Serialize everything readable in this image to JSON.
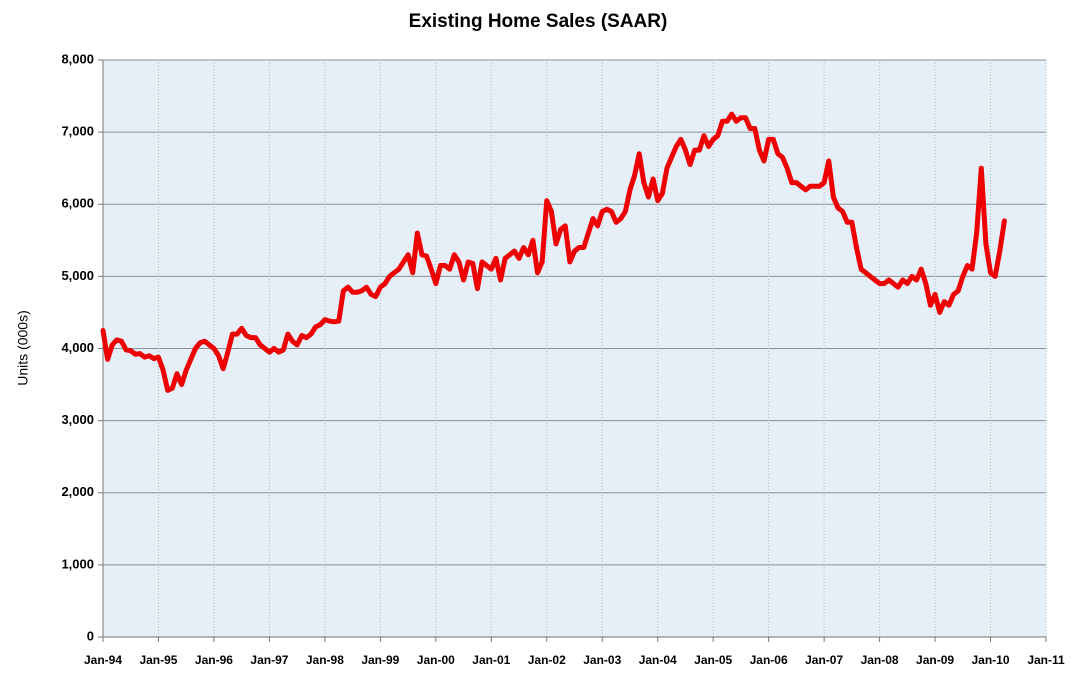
{
  "chart_data": {
    "type": "line",
    "title": "Existing Home Sales (SAAR)",
    "y_label": "Units (000s)",
    "x": [
      "1994-01",
      "1994-02",
      "1994-03",
      "1994-04",
      "1994-05",
      "1994-06",
      "1994-07",
      "1994-08",
      "1994-09",
      "1994-10",
      "1994-11",
      "1994-12",
      "1995-01",
      "1995-02",
      "1995-03",
      "1995-04",
      "1995-05",
      "1995-06",
      "1995-07",
      "1995-08",
      "1995-09",
      "1995-10",
      "1995-11",
      "1995-12",
      "1996-01",
      "1996-02",
      "1996-03",
      "1996-04",
      "1996-05",
      "1996-06",
      "1996-07",
      "1996-08",
      "1996-09",
      "1996-10",
      "1996-11",
      "1996-12",
      "1997-01",
      "1997-02",
      "1997-03",
      "1997-04",
      "1997-05",
      "1997-06",
      "1997-07",
      "1997-08",
      "1997-09",
      "1997-10",
      "1997-11",
      "1997-12",
      "1998-01",
      "1998-02",
      "1998-03",
      "1998-04",
      "1998-05",
      "1998-06",
      "1998-07",
      "1998-08",
      "1998-09",
      "1998-10",
      "1998-11",
      "1998-12",
      "1999-01",
      "1999-02",
      "1999-03",
      "1999-04",
      "1999-05",
      "1999-06",
      "1999-07",
      "1999-08",
      "1999-09",
      "1999-10",
      "1999-11",
      "1999-12",
      "2000-01",
      "2000-02",
      "2000-03",
      "2000-04",
      "2000-05",
      "2000-06",
      "2000-07",
      "2000-08",
      "2000-09",
      "2000-10",
      "2000-11",
      "2000-12",
      "2001-01",
      "2001-02",
      "2001-03",
      "2001-04",
      "2001-05",
      "2001-06",
      "2001-07",
      "2001-08",
      "2001-09",
      "2001-10",
      "2001-11",
      "2001-12",
      "2002-01",
      "2002-02",
      "2002-03",
      "2002-04",
      "2002-05",
      "2002-06",
      "2002-07",
      "2002-08",
      "2002-09",
      "2002-10",
      "2002-11",
      "2002-12",
      "2003-01",
      "2003-02",
      "2003-03",
      "2003-04",
      "2003-05",
      "2003-06",
      "2003-07",
      "2003-08",
      "2003-09",
      "2003-10",
      "2003-11",
      "2003-12",
      "2004-01",
      "2004-02",
      "2004-03",
      "2004-04",
      "2004-05",
      "2004-06",
      "2004-07",
      "2004-08",
      "2004-09",
      "2004-10",
      "2004-11",
      "2004-12",
      "2005-01",
      "2005-02",
      "2005-03",
      "2005-04",
      "2005-05",
      "2005-06",
      "2005-07",
      "2005-08",
      "2005-09",
      "2005-10",
      "2005-11",
      "2005-12",
      "2006-01",
      "2006-02",
      "2006-03",
      "2006-04",
      "2006-05",
      "2006-06",
      "2006-07",
      "2006-08",
      "2006-09",
      "2006-10",
      "2006-11",
      "2006-12",
      "2007-01",
      "2007-02",
      "2007-03",
      "2007-04",
      "2007-05",
      "2007-06",
      "2007-07",
      "2007-08",
      "2007-09",
      "2007-10",
      "2007-11",
      "2007-12",
      "2008-01",
      "2008-02",
      "2008-03",
      "2008-04",
      "2008-05",
      "2008-06",
      "2008-07",
      "2008-08",
      "2008-09",
      "2008-10",
      "2008-11",
      "2008-12",
      "2009-01",
      "2009-02",
      "2009-03",
      "2009-04",
      "2009-05",
      "2009-06",
      "2009-07",
      "2009-08",
      "2009-09",
      "2009-10",
      "2009-11",
      "2009-12",
      "2010-01",
      "2010-02",
      "2010-03",
      "2010-04"
    ],
    "series": [
      {
        "name": "Existing Home Sales",
        "color": "#ee0000",
        "values": [
          4250,
          3850,
          4050,
          4120,
          4100,
          3980,
          3970,
          3920,
          3930,
          3880,
          3900,
          3860,
          3880,
          3700,
          3420,
          3450,
          3650,
          3500,
          3700,
          3850,
          4000,
          4080,
          4100,
          4050,
          4000,
          3900,
          3720,
          3950,
          4200,
          4200,
          4280,
          4180,
          4150,
          4150,
          4050,
          4000,
          3950,
          4000,
          3950,
          3980,
          4200,
          4100,
          4050,
          4180,
          4150,
          4200,
          4300,
          4330,
          4400,
          4380,
          4370,
          4380,
          4800,
          4850,
          4780,
          4780,
          4800,
          4850,
          4750,
          4720,
          4850,
          4900,
          5000,
          5050,
          5100,
          5200,
          5300,
          5050,
          5600,
          5300,
          5280,
          5100,
          4900,
          5150,
          5150,
          5100,
          5300,
          5200,
          4950,
          5200,
          5180,
          4830,
          5200,
          5150,
          5100,
          5250,
          4950,
          5250,
          5300,
          5350,
          5250,
          5400,
          5300,
          5500,
          5050,
          5200,
          6050,
          5900,
          5450,
          5650,
          5700,
          5200,
          5350,
          5400,
          5400,
          5600,
          5800,
          5700,
          5900,
          5930,
          5900,
          5750,
          5800,
          5900,
          6200,
          6400,
          6700,
          6300,
          6100,
          6350,
          6050,
          6150,
          6500,
          6650,
          6800,
          6900,
          6750,
          6550,
          6750,
          6750,
          6950,
          6800,
          6900,
          6950,
          7150,
          7150,
          7250,
          7150,
          7200,
          7200,
          7050,
          7050,
          6750,
          6600,
          6900,
          6900,
          6700,
          6650,
          6500,
          6300,
          6300,
          6250,
          6200,
          6250,
          6250,
          6250,
          6300,
          6600,
          6100,
          5950,
          5900,
          5750,
          5750,
          5400,
          5100,
          5050,
          5000,
          4950,
          4900,
          4900,
          4950,
          4900,
          4850,
          4950,
          4900,
          5000,
          4950,
          5100,
          4900,
          4600,
          4750,
          4500,
          4650,
          4600,
          4750,
          4800,
          5000,
          5150,
          5100,
          5600,
          6500,
          5450,
          5050,
          5000,
          5350,
          5770
        ]
      }
    ],
    "xlim": [
      "1994-01",
      "2011-01"
    ],
    "xticks": [
      {
        "value": "1994-01",
        "label": "Jan-94"
      },
      {
        "value": "1995-01",
        "label": "Jan-95"
      },
      {
        "value": "1996-01",
        "label": "Jan-96"
      },
      {
        "value": "1997-01",
        "label": "Jan-97"
      },
      {
        "value": "1998-01",
        "label": "Jan-98"
      },
      {
        "value": "1999-01",
        "label": "Jan-99"
      },
      {
        "value": "2000-01",
        "label": "Jan-00"
      },
      {
        "value": "2001-01",
        "label": "Jan-01"
      },
      {
        "value": "2002-01",
        "label": "Jan-02"
      },
      {
        "value": "2003-01",
        "label": "Jan-03"
      },
      {
        "value": "2004-01",
        "label": "Jan-04"
      },
      {
        "value": "2005-01",
        "label": "Jan-05"
      },
      {
        "value": "2006-01",
        "label": "Jan-06"
      },
      {
        "value": "2007-01",
        "label": "Jan-07"
      },
      {
        "value": "2008-01",
        "label": "Jan-08"
      },
      {
        "value": "2009-01",
        "label": "Jan-09"
      },
      {
        "value": "2010-01",
        "label": "Jan-10"
      },
      {
        "value": "2011-01",
        "label": "Jan-11"
      }
    ],
    "ylim": [
      0,
      8000
    ],
    "yticks": [
      0,
      {
        "value": 1000,
        "label": "1,000"
      },
      {
        "value": 2000,
        "label": "2,000"
      },
      {
        "value": 3000,
        "label": "3,000"
      },
      {
        "value": 4000,
        "label": "4,000"
      },
      {
        "value": 5000,
        "label": "5,000"
      },
      {
        "value": 6000,
        "label": "6,000"
      },
      {
        "value": 7000,
        "label": "7,000"
      },
      {
        "value": 8000,
        "label": "8,000"
      }
    ],
    "grid": true
  }
}
